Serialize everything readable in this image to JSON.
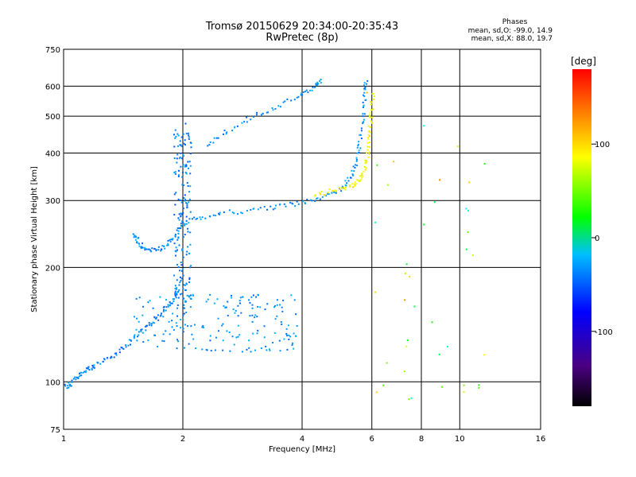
{
  "title_line1": "Tromsø 20150629 20:34:00-20:35:43",
  "title_line2": "RwPretec (8p)",
  "stats": {
    "title": "Phases",
    "o_line": "mean, sd,O: -99.0, 14.9",
    "x_line": "mean, sd,X: 88.0, 19.7"
  },
  "colorbar": {
    "unit": "[deg]",
    "range": [
      -180,
      180
    ],
    "ticks": [
      {
        "value": 100,
        "label": "100"
      },
      {
        "value": 0,
        "label": "0"
      },
      {
        "value": -100,
        "label": "-100"
      }
    ]
  },
  "chart_data": {
    "type": "scatter",
    "title": "Tromsø 20150629 20:34:00-20:35:43",
    "subtitle": "RwPretec (8p)",
    "xlabel": "Frequency [MHz]",
    "ylabel": "Stationary phase Virtual Height [km]",
    "x_scale": "log2",
    "y_scale": "log",
    "xlim": [
      1,
      16
    ],
    "ylim": [
      75,
      750
    ],
    "x_ticks": [
      1,
      2,
      4,
      6,
      8,
      10,
      16
    ],
    "x_tick_labels": [
      "1",
      "2",
      "4",
      "6",
      "8",
      "10",
      "16"
    ],
    "y_ticks": [
      75,
      100,
      200,
      300,
      400,
      500,
      600,
      750
    ],
    "y_tick_labels": [
      "75",
      "100",
      "200",
      "300",
      "400",
      "500",
      "600",
      "750"
    ],
    "grid": true,
    "colormap": "rainbow",
    "color_quantity": "phase (deg)",
    "clusters": [
      {
        "desc": "E-layer low trace",
        "points": [
          [
            1.0,
            97
          ],
          [
            1.05,
            99
          ],
          [
            1.1,
            104
          ],
          [
            1.15,
            108
          ],
          [
            1.2,
            110
          ],
          [
            1.3,
            115
          ],
          [
            1.4,
            122
          ],
          [
            1.5,
            130
          ],
          [
            1.6,
            138
          ],
          [
            1.7,
            145
          ],
          [
            1.8,
            155
          ],
          [
            1.9,
            165
          ],
          [
            1.95,
            175
          ]
        ],
        "phase": -100
      },
      {
        "desc": "Es/E band 120-170 km",
        "fmin": 1.5,
        "fmax": 3.9,
        "hmin": 120,
        "hmax": 170,
        "phase": -95
      },
      {
        "desc": "F1 descending",
        "points": [
          [
            1.5,
            245
          ],
          [
            1.55,
            232
          ],
          [
            1.6,
            225
          ],
          [
            1.7,
            222
          ],
          [
            1.8,
            226
          ],
          [
            1.9,
            240
          ],
          [
            2.0,
            260
          ],
          [
            2.2,
            270
          ],
          [
            2.5,
            278
          ],
          [
            3.0,
            283
          ],
          [
            3.5,
            290
          ],
          [
            4.0,
            296
          ],
          [
            4.5,
            305
          ],
          [
            5.0,
            320
          ],
          [
            5.3,
            345
          ],
          [
            5.5,
            380
          ],
          [
            5.6,
            430
          ],
          [
            5.7,
            500
          ],
          [
            5.75,
            570
          ],
          [
            5.8,
            620
          ]
        ],
        "phase": -95
      },
      {
        "desc": "X trace",
        "points": [
          [
            4.3,
            310
          ],
          [
            4.8,
            318
          ],
          [
            5.2,
            325
          ],
          [
            5.5,
            335
          ],
          [
            5.7,
            350
          ],
          [
            5.8,
            380
          ],
          [
            5.9,
            420
          ],
          [
            5.95,
            470
          ],
          [
            6.0,
            520
          ],
          [
            6.05,
            580
          ]
        ],
        "phase": 100
      },
      {
        "desc": "Upper F trace",
        "points": [
          [
            2.3,
            420
          ],
          [
            2.6,
            460
          ],
          [
            3.0,
            500
          ],
          [
            3.5,
            530
          ],
          [
            4.0,
            570
          ],
          [
            4.3,
            600
          ],
          [
            4.5,
            620
          ]
        ],
        "phase": -95
      },
      {
        "desc": "Vertical spread near 2 MHz",
        "fmin": 1.9,
        "fmax": 2.1,
        "hmin": 150,
        "hmax": 480,
        "phase": -100
      }
    ]
  }
}
